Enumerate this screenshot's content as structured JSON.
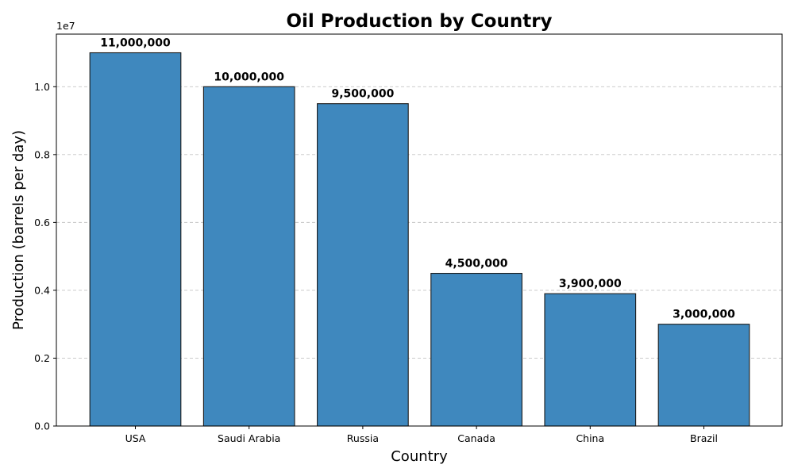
{
  "chart_data": {
    "type": "bar",
    "title": "Oil Production by Country",
    "xlabel": "Country",
    "ylabel": "Production (barrels per day)",
    "y_offset_label": "1e7",
    "categories": [
      "USA",
      "Saudi Arabia",
      "Russia",
      "Canada",
      "China",
      "Brazil"
    ],
    "values": [
      11000000,
      10000000,
      9500000,
      4500000,
      3900000,
      3000000
    ],
    "data_labels": [
      "11,000,000",
      "10,000,000",
      "9,500,000",
      "4,500,000",
      "3,900,000",
      "3,000,000"
    ],
    "ylim": [
      0,
      11550000
    ],
    "yticks": [
      0,
      2000000,
      4000000,
      6000000,
      8000000,
      10000000
    ],
    "ytick_labels": [
      "0.0",
      "0.2",
      "0.4",
      "0.6",
      "0.8",
      "1.0"
    ],
    "grid": "y-dashed",
    "bar_color": "#3f88be",
    "bar_edge_color": "#1a1a1a",
    "grid_color": "#c4c4c4"
  }
}
